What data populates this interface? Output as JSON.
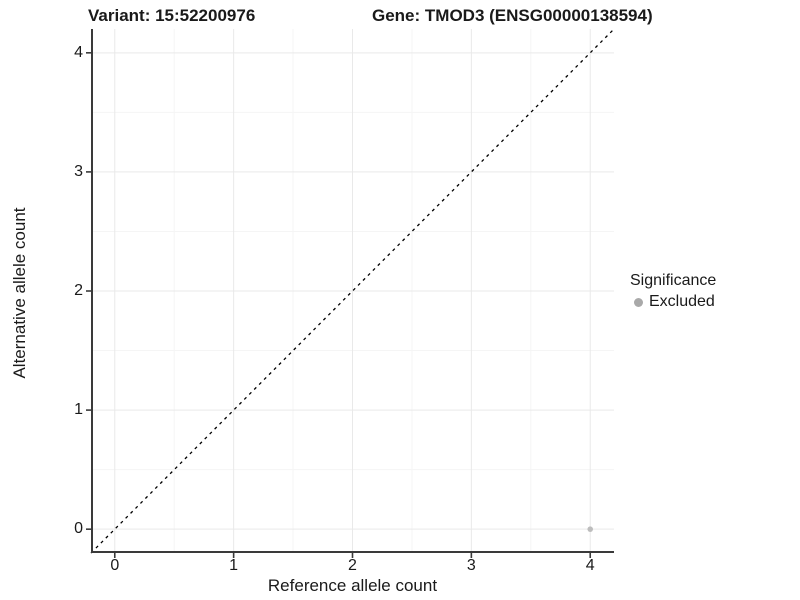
{
  "header": {
    "variant_title": "Variant: 15:52200976",
    "gene_title": "Gene: TMOD3 (ENSG00000138594)"
  },
  "chart_data": {
    "type": "scatter",
    "title_left": "Variant: 15:52200976",
    "title_right": "Gene: TMOD3 (ENSG00000138594)",
    "xlabel": "Reference allele count",
    "ylabel": "Alternative allele count",
    "xlim": [
      -0.2,
      4.2
    ],
    "ylim": [
      -0.2,
      4.2
    ],
    "x_ticks": [
      0,
      1,
      2,
      3,
      4
    ],
    "y_ticks": [
      0,
      1,
      2,
      3,
      4
    ],
    "minor_x_ticks": [
      0.5,
      1.5,
      2.5,
      3.5
    ],
    "minor_y_ticks": [
      0.5,
      1.5,
      2.5,
      3.5
    ],
    "grid": "major and minor, light grey on white panel",
    "identity_line": {
      "slope": 1,
      "intercept": 0,
      "style": "dashed",
      "color": "#000000"
    },
    "points": [
      {
        "x": 4,
        "y": 0,
        "series": "Excluded"
      }
    ],
    "legend": {
      "position": "right",
      "title": "Significance",
      "items": [
        {
          "label": "Excluded",
          "color": "#a9a9a9"
        }
      ]
    },
    "colors": {
      "point": "#bdbdbd",
      "grid_major": "#e9e9e9",
      "grid_minor": "#f5f5f5",
      "axis_line": "#3a3a3a",
      "text": "#1a1a1a"
    }
  }
}
